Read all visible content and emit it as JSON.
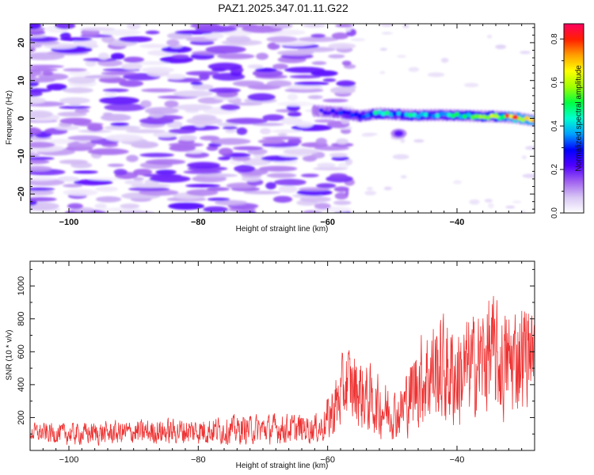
{
  "figure": {
    "title": "PAZ1.2025.347.01.11.G22"
  },
  "chart_data": [
    {
      "type": "heatmap",
      "title": "PAZ1.2025.347.01.11.G22",
      "xlabel": "Height of straight line (km)",
      "ylabel": "Frequency (Hz)",
      "xlim": [
        -106,
        -28
      ],
      "ylim": [
        -25,
        25
      ],
      "xticks": [
        -100,
        -80,
        -60,
        -40
      ],
      "yticks": [
        -20,
        -10,
        0,
        10,
        20
      ],
      "colorbar": {
        "label": "Normalized spectral amplitude",
        "range": [
          0.0,
          0.87
        ],
        "ticks": [
          0.0,
          0.2,
          0.4,
          0.6,
          0.8
        ],
        "colors": [
          "#ffffff",
          "#d8c6f4",
          "#a060f0",
          "#5000ff",
          "#0000ff",
          "#00a0ff",
          "#00ffd0",
          "#00ff40",
          "#a0ff00",
          "#ffff00",
          "#ffa000",
          "#ff2000",
          "#ff0060"
        ]
      },
      "noise_region": {
        "x_range": [
          -106,
          -57
        ],
        "freq_range": [
          -25,
          25
        ],
        "typical_amplitude": [
          0.02,
          0.22
        ]
      },
      "signal_band": [
        {
          "x": -62,
          "f": 2.0,
          "amp": 0.18
        },
        {
          "x": -58,
          "f": 1.5,
          "amp": 0.3
        },
        {
          "x": -55,
          "f": 0.6,
          "amp": 0.36
        },
        {
          "x": -52,
          "f": 1.3,
          "amp": 0.44
        },
        {
          "x": -49,
          "f": 1.0,
          "amp": 0.4
        },
        {
          "x": -46,
          "f": 0.8,
          "amp": 0.48
        },
        {
          "x": -43,
          "f": 0.9,
          "amp": 0.4
        },
        {
          "x": -40,
          "f": 0.8,
          "amp": 0.45
        },
        {
          "x": -37,
          "f": 0.6,
          "amp": 0.55
        },
        {
          "x": -34,
          "f": 0.5,
          "amp": 0.6
        },
        {
          "x": -31,
          "f": 0.2,
          "amp": 0.8
        },
        {
          "x": -28,
          "f": -0.6,
          "amp": 0.72
        }
      ],
      "secondary_blob": {
        "x": -49,
        "f": -4,
        "amp": 0.2
      }
    },
    {
      "type": "line",
      "xlabel": "Height of straight line (km)",
      "ylabel": "SNR (10 * v/v)",
      "xlim": [
        -106,
        -28
      ],
      "ylim": [
        0,
        1150
      ],
      "xticks": [
        -100,
        -80,
        -60,
        -40
      ],
      "yticks": [
        200,
        400,
        600,
        800,
        1000
      ],
      "series": [
        {
          "name": "SNR",
          "color": "#ee3333",
          "envelope": [
            {
              "x": -106,
              "mean": 110,
              "spread": 70
            },
            {
              "x": -100,
              "mean": 100,
              "spread": 80
            },
            {
              "x": -90,
              "mean": 110,
              "spread": 90
            },
            {
              "x": -80,
              "mean": 120,
              "spread": 100
            },
            {
              "x": -70,
              "mean": 130,
              "spread": 110
            },
            {
              "x": -61,
              "mean": 135,
              "spread": 110
            },
            {
              "x": -59,
              "mean": 250,
              "spread": 230
            },
            {
              "x": -57,
              "mean": 420,
              "spread": 280
            },
            {
              "x": -55,
              "mean": 350,
              "spread": 280
            },
            {
              "x": -52,
              "mean": 260,
              "spread": 220
            },
            {
              "x": -49,
              "mean": 220,
              "spread": 180
            },
            {
              "x": -46,
              "mean": 420,
              "spread": 340
            },
            {
              "x": -43,
              "mean": 500,
              "spread": 420
            },
            {
              "x": -40,
              "mean": 450,
              "spread": 400
            },
            {
              "x": -37,
              "mean": 520,
              "spread": 380
            },
            {
              "x": -35,
              "mean": 600,
              "spread": 450
            },
            {
              "x": -33,
              "mean": 500,
              "spread": 400
            },
            {
              "x": -31,
              "mean": 560,
              "spread": 420
            },
            {
              "x": -29,
              "mean": 620,
              "spread": 380
            },
            {
              "x": -28,
              "mean": 600,
              "spread": 200
            }
          ]
        }
      ]
    }
  ]
}
